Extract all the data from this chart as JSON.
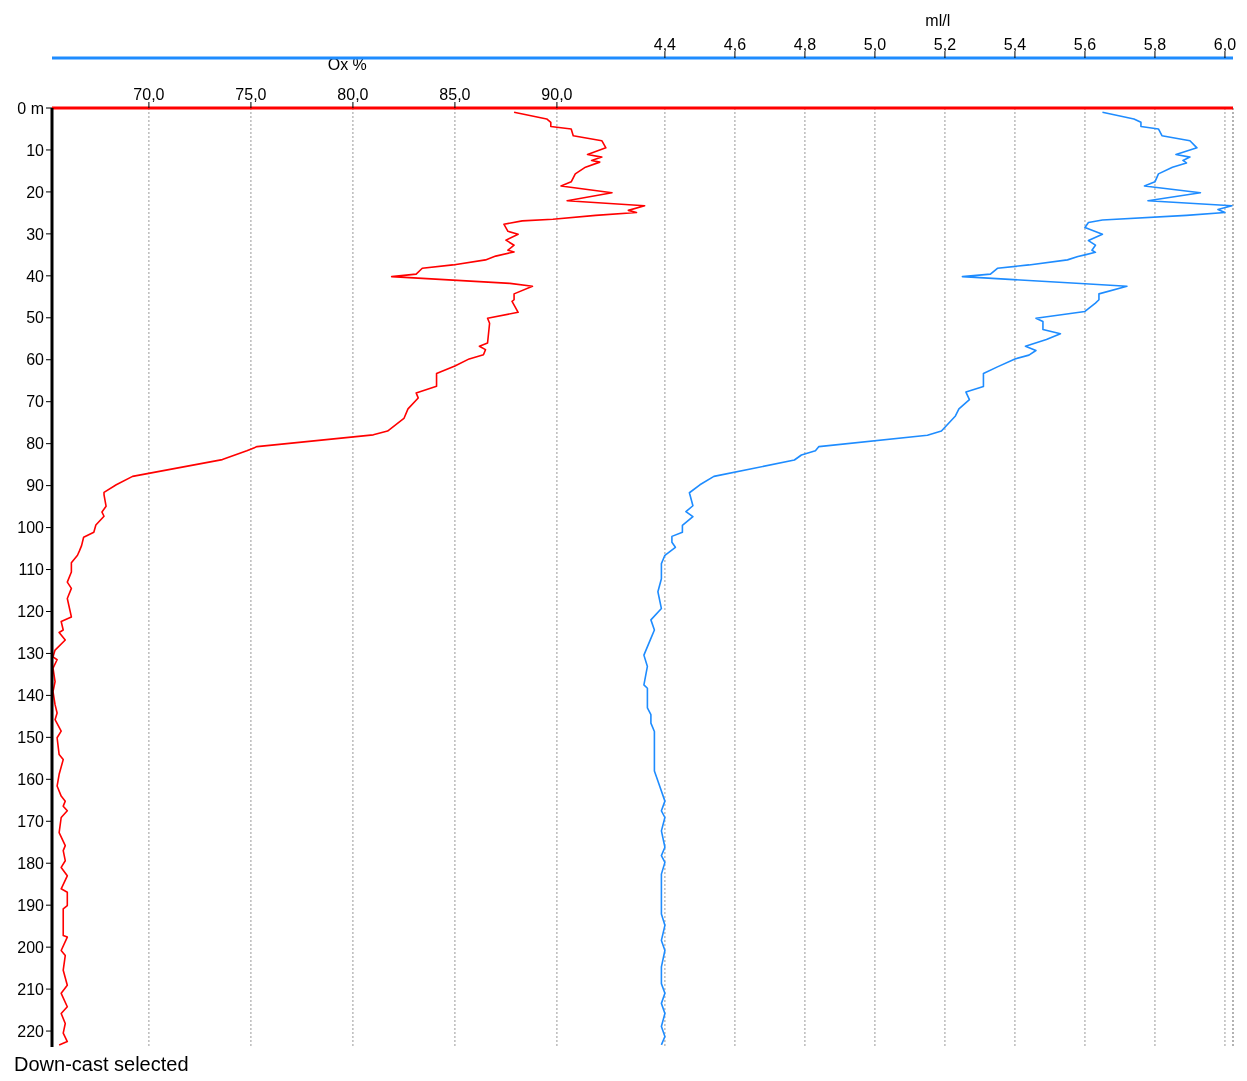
{
  "chart_data": {
    "type": "line",
    "xlabel": "Ox %",
    "x2label": "ml/l",
    "xlim": [
      65.25,
      123.14
    ],
    "xticks": [
      {
        "value": 70,
        "label": "70,0"
      },
      {
        "value": 75,
        "label": "75,0"
      },
      {
        "value": 80,
        "label": "80,0"
      },
      {
        "value": 85,
        "label": "85,0"
      },
      {
        "value": 90,
        "label": "90,0"
      }
    ],
    "x2lim": [
      2.649,
      6.023
    ],
    "x2ticks": [
      {
        "value": 4.4,
        "label": "4,4"
      },
      {
        "value": 4.6,
        "label": "4,6"
      },
      {
        "value": 4.8,
        "label": "4,8"
      },
      {
        "value": 5.0,
        "label": "5,0"
      },
      {
        "value": 5.2,
        "label": "5,2"
      },
      {
        "value": 5.4,
        "label": "5,4"
      },
      {
        "value": 5.6,
        "label": "5,6"
      },
      {
        "value": 5.8,
        "label": "5,8"
      },
      {
        "value": 6.0,
        "label": "6,0"
      }
    ],
    "ylim": [
      223.8,
      0
    ],
    "yticks": [
      {
        "value": 0,
        "label": "0 m"
      },
      10,
      20,
      30,
      40,
      50,
      60,
      70,
      80,
      90,
      100,
      110,
      120,
      130,
      140,
      150,
      160,
      170,
      180,
      190,
      200,
      210,
      220
    ],
    "grid": "x",
    "legend": false,
    "marker": "none",
    "line_style": "solid",
    "annotations": [
      "Down-cast selected"
    ],
    "series": [
      {
        "color": "#ff0000",
        "x": [
          87.9,
          89.5,
          89.7,
          89.7,
          90.7,
          90.8,
          92.2,
          92.4,
          91.5,
          92.2,
          91.7,
          92.1,
          91.4,
          90.9,
          90.7,
          90.2,
          92.7,
          90.5,
          94.3,
          93.5,
          93.9,
          91.9,
          89.8,
          88.3,
          87.4,
          87.6,
          88.1,
          87.5,
          87.9,
          87.6,
          87.9,
          87.0,
          86.5,
          84.9,
          83.4,
          83.1,
          81.9,
          87.7,
          88.8,
          87.9,
          87.9,
          87.8,
          88.1,
          86.6,
          86.7,
          86.6,
          86.2,
          86.5,
          86.4,
          85.7,
          85.0,
          84.1,
          84.1,
          83.1,
          83.2,
          82.7,
          82.5,
          81.7,
          81.0,
          75.3,
          74.8,
          73.6,
          69.2,
          68.4,
          67.8,
          67.8,
          67.9,
          67.7,
          67.8,
          67.4,
          67.3,
          66.8,
          66.7,
          66.6,
          66.5,
          66.2,
          66.2,
          66.0,
          66.2,
          66.0,
          66.2,
          65.7,
          65.8,
          65.6,
          65.9,
          65.4,
          65.3,
          65.5,
          65.3,
          65.4,
          65.3,
          65.4,
          65.5,
          65.4,
          65.7,
          65.5,
          65.6,
          65.8,
          65.6,
          65.5,
          65.7,
          65.9,
          65.8,
          66.0,
          65.7,
          65.6,
          65.9,
          65.8,
          65.9,
          65.7,
          66.0,
          65.7,
          66.0,
          66.0,
          65.8,
          65.8,
          66.0,
          65.7,
          65.9,
          65.8,
          66.0,
          65.7,
          66.0,
          65.7,
          65.9,
          65.8,
          66.0,
          65.6
        ],
        "values": [
          1.0,
          2.6,
          3.4,
          4.4,
          5.0,
          6.6,
          7.8,
          9.5,
          11.1,
          11.7,
          12.5,
          12.9,
          14.1,
          15.7,
          17.6,
          18.6,
          20.2,
          22.1,
          23.3,
          24.4,
          24.9,
          25.6,
          26.5,
          26.9,
          27.7,
          29.4,
          30.1,
          31.5,
          32.7,
          33.9,
          34.3,
          35.3,
          36.2,
          37.4,
          38.2,
          39.6,
          40.2,
          41.8,
          42.5,
          44.3,
          45.7,
          46.1,
          48.7,
          50.1,
          51.3,
          56.0,
          56.8,
          57.6,
          58.8,
          59.8,
          61.5,
          63.3,
          66.3,
          67.9,
          69.1,
          71.7,
          74.0,
          77.0,
          77.9,
          80.7,
          81.7,
          83.8,
          87.8,
          89.8,
          91.6,
          92.2,
          94.9,
          96.3,
          97.3,
          99.4,
          101.1,
          102.3,
          104.3,
          105.5,
          106.6,
          108.4,
          110.6,
          113.0,
          114.5,
          116.9,
          121.3,
          122.4,
          124.4,
          125.0,
          126.8,
          129.2,
          130.8,
          131.5,
          133.5,
          136.7,
          139.1,
          142.2,
          144.2,
          145.8,
          148.5,
          150.1,
          154.1,
          155.3,
          158.8,
          161.6,
          164.0,
          165.2,
          166.4,
          167.5,
          169.1,
          172.7,
          175.8,
          177.0,
          179.4,
          181.0,
          183.0,
          186.1,
          186.9,
          190.1,
          190.9,
          197.2,
          197.6,
          200.8,
          202.0,
          205.5,
          209.1,
          211.0,
          214.2,
          215.8,
          218.2,
          220.5,
          222.5,
          223.3
        ]
      },
      {
        "color": "#1e8cff",
        "axis": "x2",
        "x": [
          5.65,
          5.74,
          5.76,
          5.76,
          5.81,
          5.82,
          5.9,
          5.92,
          5.86,
          5.9,
          5.88,
          5.89,
          5.85,
          5.81,
          5.8,
          5.77,
          5.93,
          5.78,
          6.02,
          5.98,
          6.0,
          5.89,
          5.65,
          5.61,
          5.6,
          5.65,
          5.61,
          5.63,
          5.62,
          5.63,
          5.6,
          5.58,
          5.55,
          5.44,
          5.35,
          5.33,
          5.25,
          5.6,
          5.72,
          5.64,
          5.64,
          5.63,
          5.6,
          5.46,
          5.48,
          5.48,
          5.53,
          5.49,
          5.43,
          5.46,
          5.44,
          5.4,
          5.35,
          5.31,
          5.31,
          5.31,
          5.26,
          5.27,
          5.24,
          5.23,
          5.19,
          5.15,
          4.84,
          4.83,
          4.79,
          4.77,
          4.54,
          4.5,
          4.47,
          4.48,
          4.46,
          4.48,
          4.45,
          4.45,
          4.42,
          4.42,
          4.43,
          4.4,
          4.39,
          4.39,
          4.38,
          4.39,
          4.36,
          4.37,
          4.36,
          4.34,
          4.35,
          4.34,
          4.35,
          4.35,
          4.36,
          4.36,
          4.37,
          4.37,
          4.37,
          4.37,
          4.38,
          4.4,
          4.39,
          4.4,
          4.39,
          4.4,
          4.39,
          4.4,
          4.39,
          4.39,
          4.39,
          4.4,
          4.39,
          4.4,
          4.39,
          4.39,
          4.4,
          4.39,
          4.4,
          4.39,
          4.4,
          4.39
        ],
        "values": [
          1.0,
          2.6,
          3.4,
          4.4,
          5.0,
          6.6,
          7.8,
          9.5,
          11.1,
          11.7,
          12.5,
          13.1,
          14.1,
          15.7,
          17.6,
          18.6,
          20.2,
          22.1,
          23.3,
          24.2,
          24.9,
          25.6,
          26.7,
          27.3,
          28.5,
          30.1,
          31.6,
          32.7,
          33.9,
          34.4,
          35.0,
          35.4,
          36.2,
          37.4,
          38.2,
          39.6,
          40.2,
          41.9,
          42.5,
          44.3,
          45.7,
          46.5,
          48.5,
          50.1,
          50.9,
          52.8,
          53.8,
          55.2,
          56.8,
          57.8,
          58.9,
          59.8,
          61.7,
          63.3,
          65.1,
          66.4,
          67.7,
          69.5,
          71.7,
          73.4,
          77.0,
          78.0,
          80.7,
          81.7,
          82.7,
          83.9,
          87.8,
          89.8,
          91.7,
          94.8,
          96.2,
          97.4,
          99.5,
          101.1,
          102.1,
          103.5,
          104.7,
          106.6,
          108.6,
          112.2,
          115.3,
          119.3,
          122.0,
          124.4,
          126.4,
          130.4,
          133.1,
          137.5,
          138.3,
          143.0,
          144.6,
          146.6,
          148.6,
          151.7,
          153.3,
          158.0,
          160.4,
          165.2,
          167.5,
          169.1,
          172.3,
          176.2,
          178.2,
          179.8,
          182.6,
          186.5,
          192.1,
          194.8,
          198.4,
          200.8,
          204.7,
          208.7,
          211.0,
          213.4,
          215.8,
          218.9,
          221.3,
          223.3
        ]
      }
    ]
  }
}
